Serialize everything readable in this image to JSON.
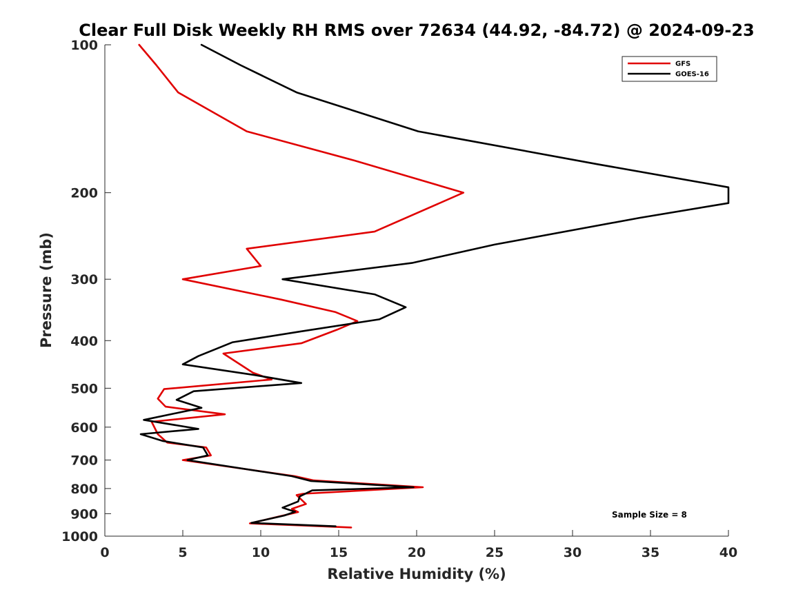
{
  "chart_data": {
    "type": "line",
    "title": "Clear Full Disk Weekly RH RMS over 72634 (44.92, -84.72) @ 2024-09-23",
    "xlabel": "Relative Humidity (%)",
    "ylabel": "Pressure (mb)",
    "xlim": [
      0,
      40
    ],
    "ylim": [
      100,
      1000
    ],
    "y_scale": "log",
    "y_reversed": true,
    "grid": false,
    "xticks": [
      0,
      5,
      10,
      15,
      20,
      25,
      30,
      35,
      40
    ],
    "yticks": [
      100,
      200,
      300,
      400,
      500,
      600,
      700,
      800,
      900,
      1000
    ],
    "legend_position": "top-right",
    "annotation": "Sample Size = 8",
    "series": [
      {
        "name": "GFS",
        "color": "#e00000",
        "x": [
          2.2,
          3.3,
          4.7,
          9.1,
          16.0,
          23.0,
          17.3,
          9.1,
          10.0,
          5.0,
          11.3,
          14.8,
          16.2,
          14.9,
          12.6,
          7.6,
          9.5,
          10.7,
          3.8,
          3.4,
          3.9,
          7.7,
          3.0,
          3.4,
          4.0,
          6.5,
          6.8,
          5.0,
          12.2,
          13.4,
          20.4,
          12.7,
          12.3,
          12.9,
          12.0,
          12.4,
          11.3,
          9.3,
          12.2,
          15.8
        ],
        "y": [
          100,
          110,
          125,
          150,
          172,
          200,
          240,
          260,
          282,
          300,
          330,
          350,
          365,
          380,
          405,
          425,
          465,
          480,
          502,
          525,
          545,
          565,
          585,
          620,
          645,
          660,
          685,
          700,
          755,
          770,
          795,
          820,
          825,
          860,
          880,
          893,
          910,
          942,
          950,
          960
        ]
      },
      {
        "name": "GOES-16",
        "color": "#000000",
        "x": [
          6.2,
          8.7,
          12.3,
          20.1,
          31.6,
          40.0,
          40.0,
          34.3,
          25.0,
          19.7,
          11.4,
          17.3,
          19.3,
          17.6,
          12.6,
          8.2,
          6.0,
          5.0,
          9.6,
          12.6,
          5.7,
          4.6,
          6.2,
          2.5,
          6.0,
          2.3,
          3.7,
          6.3,
          6.6,
          5.3,
          12.0,
          13.2,
          19.8,
          13.3,
          12.5,
          12.4,
          11.4,
          12.2,
          11.5,
          9.4,
          14.8
        ],
        "y": [
          100,
          110,
          125,
          150,
          175,
          195,
          210,
          225,
          255,
          278,
          300,
          322,
          342,
          362,
          383,
          403,
          430,
          447,
          470,
          488,
          507,
          528,
          548,
          580,
          605,
          620,
          640,
          660,
          685,
          700,
          755,
          772,
          795,
          807,
          830,
          850,
          875,
          892,
          908,
          940,
          955
        ]
      }
    ]
  }
}
